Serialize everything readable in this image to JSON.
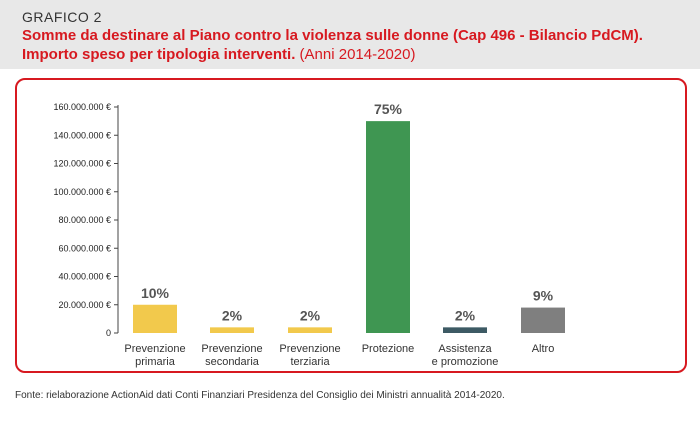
{
  "header": {
    "label": "GRAFICO 2",
    "title": "Somme da destinare al Piano contro la violenza sulle donne (Cap 496 - Bilancio PdCM). Importo speso per tipologia interventi.",
    "subtitle": "(Anni 2014-2020)"
  },
  "source": "Fonte: rielaborazione ActionAid dati Conti Finanziari Presidenza del Consiglio dei Ministri annualità 2014-2020.",
  "colors": {
    "accent": "#d71920",
    "yellow": "#f2c94c",
    "green": "#3f9652",
    "dark": "#3d5a64",
    "gray": "#7f7f7f"
  },
  "chart_data": {
    "type": "bar",
    "categories": [
      [
        "Prevenzione",
        "primaria"
      ],
      [
        "Prevenzione",
        "secondaria"
      ],
      [
        "Prevenzione",
        "terziaria"
      ],
      [
        "Protezione"
      ],
      [
        "Assistenza",
        "e promozione"
      ],
      [
        "Altro"
      ]
    ],
    "values": [
      20000000,
      4000000,
      4000000,
      150000000,
      4000000,
      18000000
    ],
    "labels": [
      "10%",
      "2%",
      "2%",
      "75%",
      "2%",
      "9%"
    ],
    "bar_colors": [
      "#f2c94c",
      "#f2c94c",
      "#f2c94c",
      "#3f9652",
      "#3d5a64",
      "#7f7f7f"
    ],
    "yticks": [
      0,
      20000000,
      40000000,
      60000000,
      80000000,
      100000000,
      120000000,
      140000000,
      160000000
    ],
    "ytick_labels": [
      "0",
      "20.000.000 €",
      "40.000.000 €",
      "60.000.000 €",
      "80.000.000 €",
      "100.000.000 €",
      "120.000.000 €",
      "140.000.000 €",
      "160.000.000 €"
    ],
    "ylim": [
      0,
      160000000
    ],
    "grid": false
  }
}
